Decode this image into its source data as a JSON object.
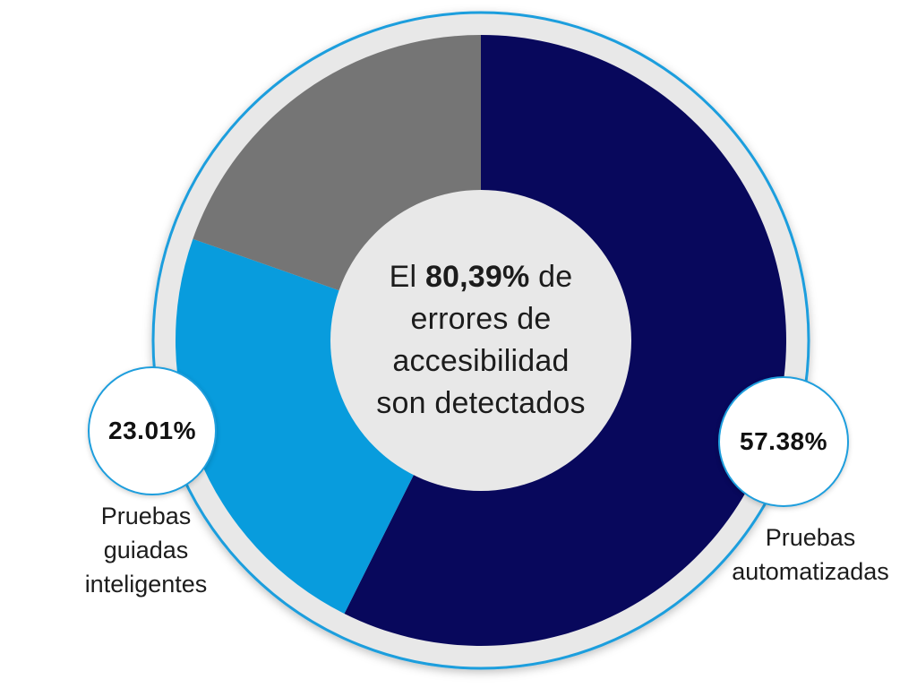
{
  "colors": {
    "background": "#ffffff",
    "ring_fill": "#e8e8e8",
    "hole_fill": "#e8e8e8",
    "outline_blue": "#1e9edd",
    "text": "#1c1c1c"
  },
  "center_label": {
    "line1_prefix": "El ",
    "line1_bold": "80,39%",
    "line1_suffix": " de",
    "line2": "errores de",
    "line3": "accesibilidad",
    "line4": "son detectados"
  },
  "badges": {
    "left": {
      "value": "23.01%",
      "label_lines": [
        "Pruebas",
        "guiadas",
        "inteligentes"
      ]
    },
    "right": {
      "value": "57.38%",
      "label_lines": [
        "Pruebas",
        "automatizadas"
      ]
    }
  },
  "chart_data": {
    "type": "pie",
    "title": "El 80,39% de errores de accesibilidad son detectados",
    "donut": true,
    "hole_ratio": 0.49,
    "start_angle_deg": 0,
    "direction": "clockwise",
    "total": 100,
    "slices": [
      {
        "label": "Pruebas automatizadas",
        "value": 57.38,
        "color": "#08085c",
        "callout": "57.38%"
      },
      {
        "label": "Pruebas guiadas inteligentes",
        "value": 23.01,
        "color": "#089cdd",
        "callout": "23.01%"
      },
      {
        "label": "",
        "value": 19.61,
        "color": "#757575",
        "callout": ""
      }
    ]
  }
}
